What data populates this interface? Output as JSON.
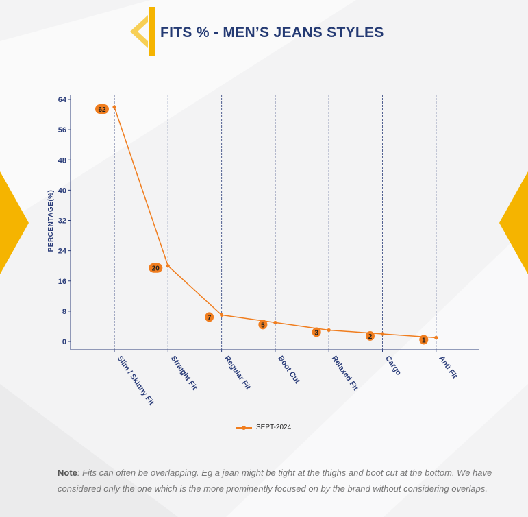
{
  "header": {
    "title": "FITS % - MEN’S JEANS STYLES"
  },
  "colors": {
    "accent": "#f5b400",
    "title": "#243a73",
    "line": "#f07d1e",
    "grid": "#2c3e7a"
  },
  "chart_data": {
    "type": "line",
    "title": "",
    "xlabel": "",
    "ylabel": "PERCENTAGE(%)",
    "ylim": [
      0,
      64
    ],
    "yticks": [
      0,
      8,
      16,
      24,
      32,
      40,
      48,
      56,
      64
    ],
    "categories": [
      "Slim / Skinny Fit",
      "Straight Fit",
      "Regular Fit",
      "Boot Cut",
      "Relaxed Fit",
      "Cargo",
      "Anti Fit"
    ],
    "series": [
      {
        "name": "SEPT-2024",
        "values": [
          62,
          20,
          7,
          5,
          3,
          2,
          1
        ]
      }
    ],
    "data_labels": true,
    "grid": "vertical-dashed",
    "legend_position": "bottom-center"
  },
  "note": {
    "label": "Note",
    "text": ": Fits can often be overlapping. Eg a jean might be tight at the thighs and boot cut at the bottom. We have considered only the one which is the more prominently focused on by the brand without considering overlaps."
  }
}
